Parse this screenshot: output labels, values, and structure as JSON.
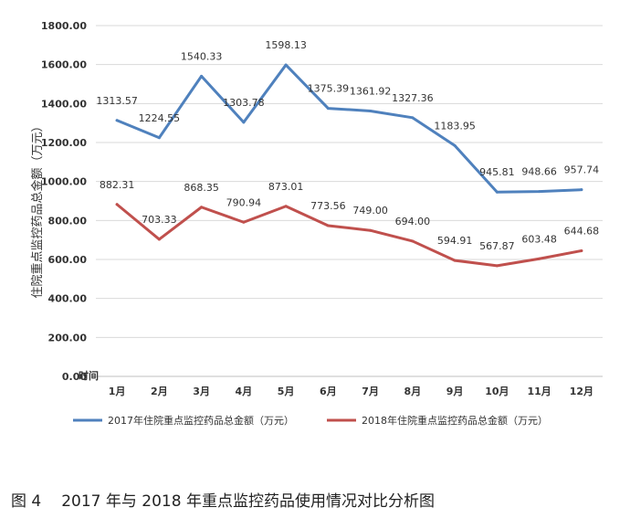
{
  "chart_data": {
    "type": "line",
    "categories": [
      "1月",
      "2月",
      "3月",
      "4月",
      "5月",
      "6月",
      "7月",
      "8月",
      "9月",
      "10月",
      "11月",
      "12月"
    ],
    "series": [
      {
        "name": "2017年住院重点监控药品总金额（万元）",
        "color": "#4f81bd",
        "values": [
          1313.57,
          1224.55,
          1540.33,
          1303.78,
          1598.13,
          1375.39,
          1361.92,
          1327.36,
          1183.95,
          945.81,
          948.66,
          957.74
        ],
        "labels": [
          "1313.57",
          "1224.55",
          "1540.33",
          "1303.78",
          "1598.13",
          "1375.39",
          "1361.92",
          "1327.36",
          "1183.95",
          "945.81",
          "948.66",
          "957.74"
        ]
      },
      {
        "name": "2018年住院重点监控药品总金额（万元）",
        "color": "#c0504d",
        "values": [
          882.31,
          703.33,
          868.35,
          790.94,
          873.01,
          773.56,
          749.0,
          694.0,
          594.91,
          567.87,
          603.48,
          644.68
        ],
        "labels": [
          "882.31",
          "703.33",
          "868.35",
          "790.94",
          "873.01",
          "773.56",
          "749.00",
          "694.00",
          "594.91",
          "567.87",
          "603.48",
          "644.68"
        ]
      }
    ],
    "yticks": [
      "0.00",
      "200.00",
      "400.00",
      "600.00",
      "800.00",
      "1000.00",
      "1200.00",
      "1400.00",
      "1600.00",
      "1800.00"
    ],
    "ylim": [
      0,
      1800
    ],
    "ylabel": "住院重点监控药品总金额（万元）",
    "xlabel": "时间",
    "grid": true,
    "legend_position": "bottom"
  },
  "caption": {
    "figure_no": "图 4",
    "text": "2017 年与 2018 年重点监控药品使用情况对比分析图"
  }
}
